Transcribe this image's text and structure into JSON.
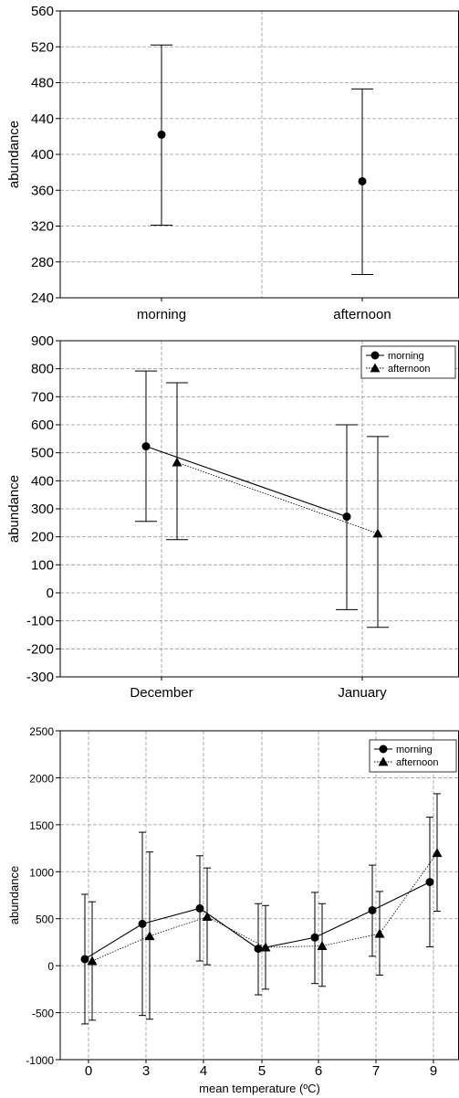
{
  "chart_data": [
    {
      "type": "scatter",
      "error_bars": true,
      "title": "",
      "xlabel": "",
      "ylabel": "abundance",
      "categories": [
        "morning",
        "afternoon"
      ],
      "ylim": [
        240,
        560
      ],
      "yticks": [
        240,
        280,
        320,
        360,
        400,
        440,
        480,
        520,
        560
      ],
      "grid": true,
      "series": [
        {
          "marker": "circle",
          "values": [
            422,
            370
          ],
          "lower": [
            321,
            266
          ],
          "upper": [
            522,
            473
          ]
        }
      ]
    },
    {
      "type": "line",
      "error_bars": true,
      "title": "",
      "xlabel": "",
      "ylabel": "abundance",
      "categories": [
        "December",
        "January"
      ],
      "ylim": [
        -300,
        900
      ],
      "yticks": [
        -300,
        -200,
        -100,
        0,
        100,
        200,
        300,
        400,
        500,
        600,
        700,
        800,
        900
      ],
      "grid": true,
      "legend_position": "top-right",
      "series": [
        {
          "name": "morning",
          "marker": "circle",
          "line": "solid",
          "values": [
            523,
            272
          ],
          "lower": [
            255,
            -60
          ],
          "upper": [
            792,
            600
          ]
        },
        {
          "name": "afternoon",
          "marker": "triangle",
          "line": "dotted",
          "values": [
            466,
            212
          ],
          "lower": [
            190,
            -123
          ],
          "upper": [
            750,
            558
          ]
        }
      ]
    },
    {
      "type": "line",
      "error_bars": true,
      "title": "",
      "xlabel": "mean temperature (ºC)",
      "ylabel": "abundance",
      "categories": [
        "0",
        "3",
        "4",
        "5",
        "6",
        "7",
        "9"
      ],
      "ylim": [
        -1000,
        2500
      ],
      "yticks": [
        -1000,
        -500,
        0,
        500,
        1000,
        1500,
        2000,
        2500
      ],
      "grid": true,
      "legend_position": "top-right",
      "series": [
        {
          "name": "morning",
          "marker": "circle",
          "line": "solid",
          "values": [
            70,
            445,
            610,
            180,
            300,
            590,
            890
          ],
          "lower": [
            -620,
            -530,
            50,
            -310,
            -190,
            100,
            200
          ],
          "upper": [
            760,
            1420,
            1170,
            660,
            780,
            1070,
            1580
          ]
        },
        {
          "name": "afternoon",
          "marker": "triangle",
          "line": "dotted",
          "values": [
            50,
            315,
            520,
            195,
            210,
            340,
            1200
          ],
          "lower": [
            -580,
            -570,
            10,
            -250,
            -220,
            -100,
            580
          ],
          "upper": [
            680,
            1210,
            1040,
            640,
            660,
            790,
            1830
          ]
        }
      ]
    }
  ]
}
